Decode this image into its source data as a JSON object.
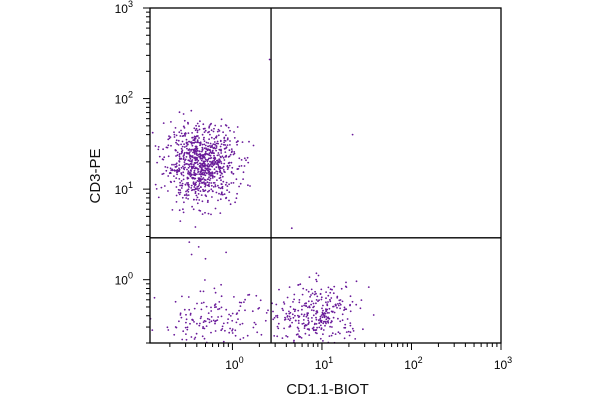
{
  "chart_data": {
    "type": "scatter",
    "title": "",
    "xlabel": "CD1.1-BIOT",
    "ylabel": "CD3-PE",
    "x_scale": "log",
    "y_scale": "log",
    "xlim": [
      0.12,
      1000
    ],
    "ylim": [
      0.2,
      1000
    ],
    "grid": false,
    "legend": "none",
    "point_color": "#6a1b9a",
    "quadrant_gates": {
      "x": 2.7,
      "y": 2.9
    },
    "x_ticks": [
      {
        "value": 1,
        "base": "10",
        "exp": "0"
      },
      {
        "value": 10,
        "base": "10",
        "exp": "1"
      },
      {
        "value": 100,
        "base": "10",
        "exp": "2"
      },
      {
        "value": 1000,
        "base": "10",
        "exp": "3"
      }
    ],
    "y_ticks": [
      {
        "value": 1,
        "base": "10",
        "exp": "0"
      },
      {
        "value": 10,
        "base": "10",
        "exp": "1"
      },
      {
        "value": 100,
        "base": "10",
        "exp": "2"
      },
      {
        "value": 1000,
        "base": "10",
        "exp": "3"
      }
    ],
    "populations": [
      {
        "n": 900,
        "center": [
          0.45,
          19
        ],
        "spread": [
          0.2,
          0.21
        ],
        "clip_y": [
          3.2,
          75
        ]
      },
      {
        "n": 300,
        "center": [
          9.5,
          0.42
        ],
        "spread": [
          0.22,
          0.17
        ],
        "clip_y": [
          0.2,
          1.2
        ]
      },
      {
        "n": 160,
        "center": [
          0.6,
          0.33
        ],
        "spread": [
          0.3,
          0.17
        ],
        "clip_y": [
          0.2,
          1.1
        ]
      },
      {
        "n": 30,
        "center": [
          4.0,
          0.3
        ],
        "spread": [
          0.15,
          0.15
        ],
        "clip_y": [
          0.2,
          1.0
        ]
      }
    ],
    "outliers": [
      [
        2.6,
        270
      ],
      [
        22,
        40
      ],
      [
        4.6,
        3.7
      ],
      [
        0.42,
        2.3
      ],
      [
        0.33,
        2.6
      ],
      [
        0.85,
        2.0
      ],
      [
        0.5,
        1.7
      ],
      [
        0.35,
        1.9
      ]
    ]
  }
}
